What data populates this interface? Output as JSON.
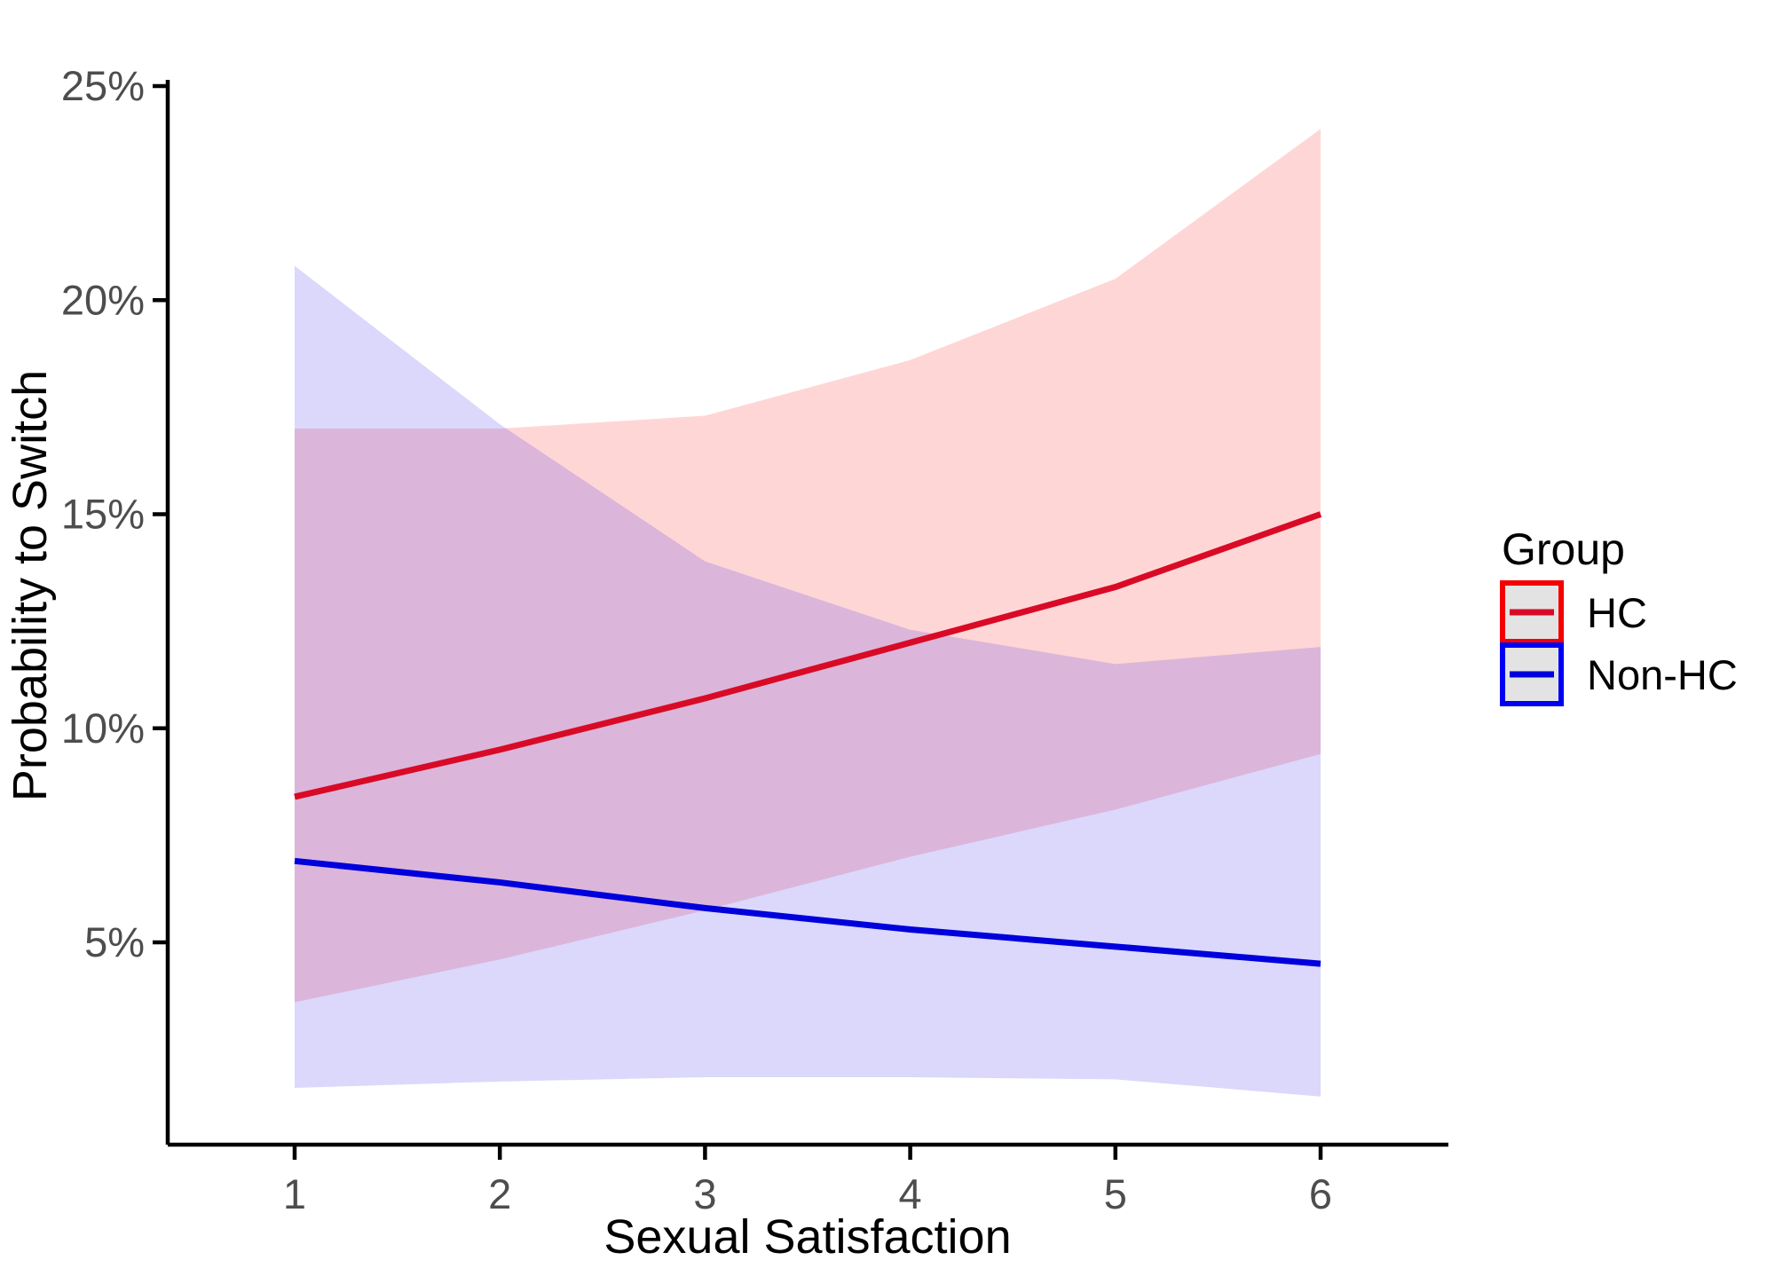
{
  "chart_data": {
    "type": "area",
    "title": "",
    "xlabel": "Sexual Satisfaction",
    "ylabel": "Probability to Switch",
    "x": [
      1,
      2,
      3,
      4,
      5,
      6
    ],
    "x_tick_labels": [
      "1",
      "2",
      "3",
      "4",
      "5",
      "6"
    ],
    "y_ticks": [
      {
        "value": 25,
        "label": "25%"
      },
      {
        "value": 20,
        "label": "20%"
      },
      {
        "value": 15,
        "label": "15%"
      },
      {
        "value": 10,
        "label": "10%"
      },
      {
        "value": 5,
        "label": "5%"
      }
    ],
    "xlim": [
      1,
      6
    ],
    "ylim": [
      0.3,
      25.2
    ],
    "grid": false,
    "legend_position": "right",
    "series": [
      {
        "name": "HC",
        "line_color": "#D90A26",
        "key_border_color": "#F40000",
        "band_color": "#FF0000",
        "band_opacity": 0.16,
        "values": [
          8.4,
          9.5,
          10.7,
          12.0,
          13.3,
          15.0
        ],
        "upper": [
          17.0,
          17.0,
          17.3,
          18.6,
          20.5,
          24.0
        ],
        "lower": [
          3.6,
          4.6,
          5.75,
          7.0,
          8.1,
          9.4
        ]
      },
      {
        "name": "Non-HC",
        "line_color": "#0000DC",
        "key_border_color": "#0000F5",
        "band_color": "#2A1AEF",
        "band_opacity": 0.17,
        "values": [
          6.9,
          6.4,
          5.8,
          5.3,
          4.9,
          4.5
        ],
        "upper": [
          20.8,
          17.1,
          13.9,
          12.3,
          11.5,
          11.9
        ],
        "lower": [
          1.6,
          1.75,
          1.85,
          1.85,
          1.8,
          1.4
        ]
      }
    ],
    "legend": {
      "title": "Group",
      "entries": [
        "HC",
        "Non-HC"
      ],
      "key_fill": "#E3E3E3"
    },
    "colors": {
      "axis_line": "#000000",
      "tick_text": "#4D4D4D",
      "axis_title_text": "#000000"
    }
  }
}
